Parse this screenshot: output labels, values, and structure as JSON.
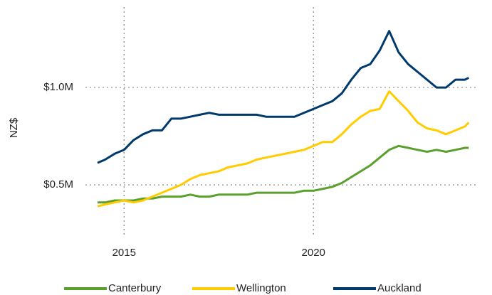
{
  "chart_data": {
    "type": "line",
    "y_label": "NZ$",
    "x": [
      2014.3,
      2014.5,
      2014.75,
      2015,
      2015.25,
      2015.5,
      2015.75,
      2016,
      2016.25,
      2016.5,
      2016.75,
      2017,
      2017.25,
      2017.5,
      2017.75,
      2018,
      2018.25,
      2018.5,
      2018.75,
      2019,
      2019.25,
      2019.5,
      2019.75,
      2020,
      2020.25,
      2020.5,
      2020.75,
      2021,
      2021.25,
      2021.5,
      2021.75,
      2022,
      2022.25,
      2022.5,
      2022.75,
      2023,
      2023.25,
      2023.5,
      2023.75,
      2024,
      2024.1
    ],
    "series": [
      {
        "name": "Canterbury",
        "color": "#5aa02c",
        "values": [
          410000,
          410000,
          420000,
          420000,
          420000,
          430000,
          430000,
          440000,
          440000,
          440000,
          450000,
          440000,
          440000,
          450000,
          450000,
          450000,
          450000,
          460000,
          460000,
          460000,
          460000,
          460000,
          470000,
          470000,
          480000,
          490000,
          510000,
          540000,
          570000,
          600000,
          640000,
          680000,
          700000,
          690000,
          680000,
          670000,
          680000,
          670000,
          680000,
          690000,
          690000
        ]
      },
      {
        "name": "Wellington",
        "color": "#ffcc00",
        "values": [
          390000,
          400000,
          410000,
          420000,
          410000,
          420000,
          440000,
          460000,
          480000,
          500000,
          530000,
          550000,
          560000,
          570000,
          590000,
          600000,
          610000,
          630000,
          640000,
          650000,
          660000,
          670000,
          680000,
          700000,
          720000,
          720000,
          760000,
          810000,
          850000,
          880000,
          890000,
          980000,
          930000,
          880000,
          820000,
          790000,
          780000,
          760000,
          780000,
          800000,
          820000
        ]
      },
      {
        "name": "Auckland",
        "color": "#003a6c",
        "values": [
          613000,
          630000,
          660000,
          680000,
          730000,
          760000,
          780000,
          780000,
          840000,
          840000,
          850000,
          860000,
          870000,
          860000,
          860000,
          860000,
          860000,
          860000,
          850000,
          850000,
          850000,
          850000,
          870000,
          890000,
          910000,
          930000,
          970000,
          1040000,
          1100000,
          1120000,
          1190000,
          1290000,
          1180000,
          1120000,
          1080000,
          1040000,
          1000000,
          1000000,
          1040000,
          1040000,
          1050000
        ]
      }
    ],
    "xlim": [
      2013.98,
      2024.32
    ],
    "xticks": [
      2015,
      2020
    ],
    "ylim": [
      245000,
      1449000
    ],
    "yticks": [
      {
        "value": 500000,
        "label": "$0.5M"
      },
      {
        "value": 1000000,
        "label": "$1.0M"
      }
    ],
    "grid": true,
    "legend": "bottom"
  }
}
